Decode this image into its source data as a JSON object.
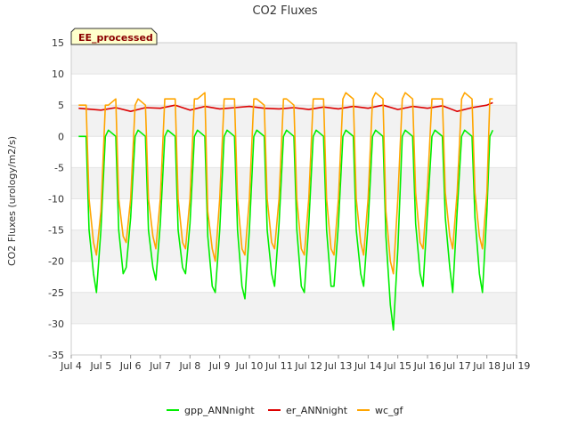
{
  "chart_data": {
    "type": "line",
    "title": "CO2 Fluxes",
    "xlabel": "",
    "ylabel": "CO2 Fluxes (urology/m2/s)",
    "badge": "EE_processed",
    "xlim": [
      4,
      19
    ],
    "ylim": [
      -35,
      15
    ],
    "x_ticks": [
      {
        "value": 4,
        "label": "Jul 4"
      },
      {
        "value": 5,
        "label": "Jul 5"
      },
      {
        "value": 6,
        "label": "Jul 6"
      },
      {
        "value": 7,
        "label": "Jul 7"
      },
      {
        "value": 8,
        "label": "Jul 8"
      },
      {
        "value": 9,
        "label": "Jul 9"
      },
      {
        "value": 10,
        "label": "Jul 10"
      },
      {
        "value": 11,
        "label": "Jul 11"
      },
      {
        "value": 12,
        "label": "Jul 12"
      },
      {
        "value": 13,
        "label": "Jul 13"
      },
      {
        "value": 14,
        "label": "Jul 14"
      },
      {
        "value": 15,
        "label": "Jul 15"
      },
      {
        "value": 16,
        "label": "Jul 16"
      },
      {
        "value": 17,
        "label": "Jul 17"
      },
      {
        "value": 18,
        "label": "Jul 18"
      },
      {
        "value": 19,
        "label": "Jul 19"
      }
    ],
    "y_ticks": [
      15,
      10,
      5,
      0,
      -5,
      -10,
      -15,
      -20,
      -25,
      -30,
      -35
    ],
    "y_tick_labels": [
      "15",
      "10",
      "5",
      "0",
      "-5",
      "-10",
      "-15",
      "-20",
      "-25",
      "-30",
      "-35"
    ],
    "legend_position": "bottom-center",
    "series": [
      {
        "name": "gpp_ANNnight",
        "color": "#00ee00",
        "x": [
          4.25,
          4.5,
          4.6,
          4.75,
          4.85,
          5.0,
          5.15,
          5.25,
          5.5,
          5.6,
          5.75,
          5.85,
          6.0,
          6.15,
          6.25,
          6.5,
          6.6,
          6.75,
          6.85,
          7.0,
          7.15,
          7.25,
          7.5,
          7.6,
          7.75,
          7.85,
          8.0,
          8.15,
          8.25,
          8.5,
          8.6,
          8.75,
          8.85,
          9.0,
          9.15,
          9.25,
          9.5,
          9.6,
          9.75,
          9.85,
          10.0,
          10.15,
          10.25,
          10.5,
          10.6,
          10.75,
          10.85,
          11.0,
          11.15,
          11.25,
          11.5,
          11.6,
          11.75,
          11.85,
          12.0,
          12.15,
          12.25,
          12.5,
          12.6,
          12.75,
          12.85,
          13.0,
          13.15,
          13.25,
          13.5,
          13.6,
          13.75,
          13.85,
          14.0,
          14.15,
          14.25,
          14.5,
          14.6,
          14.75,
          14.85,
          15.0,
          15.15,
          15.25,
          15.5,
          15.6,
          15.75,
          15.85,
          16.0,
          16.15,
          16.25,
          16.5,
          16.6,
          16.75,
          16.85,
          17.0,
          17.15,
          17.25,
          17.5,
          17.6,
          17.75,
          17.85,
          18.0,
          18.1,
          18.2
        ],
        "y": [
          0,
          0,
          -15,
          -22,
          -25,
          -15,
          0,
          1,
          0,
          -15,
          -22,
          -21,
          -13,
          0,
          1,
          0,
          -15,
          -21,
          -23,
          -14,
          0,
          1,
          0,
          -15,
          -21,
          -22,
          -14,
          0,
          1,
          0,
          -16,
          -24,
          -25,
          -15,
          0,
          1,
          0,
          -15,
          -24,
          -26,
          -15,
          0,
          1,
          0,
          -15,
          -22,
          -24,
          -14,
          0,
          1,
          0,
          -15,
          -24,
          -25,
          -14,
          0,
          1,
          0,
          -15,
          -24,
          -24,
          -14,
          0,
          1,
          0,
          -15,
          -22,
          -24,
          -14,
          0,
          1,
          0,
          -16,
          -27,
          -31,
          -18,
          0,
          1,
          0,
          -14,
          -22,
          -24,
          -12,
          0,
          1,
          0,
          -13,
          -21,
          -25,
          -12,
          0,
          1,
          0,
          -13,
          -22,
          -25,
          -12,
          0,
          1
        ]
      },
      {
        "name": "er_ANNnight",
        "color": "#dd0000",
        "x": [
          4.25,
          5.0,
          5.5,
          6.0,
          6.5,
          7.0,
          7.5,
          8.0,
          8.5,
          9.0,
          9.5,
          10.0,
          10.5,
          11.0,
          11.5,
          12.0,
          12.5,
          13.0,
          13.5,
          14.0,
          14.5,
          15.0,
          15.5,
          16.0,
          16.5,
          17.0,
          17.5,
          18.0,
          18.2
        ],
        "y": [
          4.5,
          4.2,
          4.6,
          4.0,
          4.6,
          4.5,
          5.0,
          4.2,
          4.8,
          4.4,
          4.6,
          4.8,
          4.5,
          4.4,
          4.6,
          4.3,
          4.7,
          4.4,
          4.8,
          4.5,
          5.0,
          4.3,
          4.8,
          4.5,
          4.9,
          4.0,
          4.6,
          5.0,
          5.4
        ]
      },
      {
        "name": "wc_gf",
        "color": "#ffa500",
        "x": [
          4.25,
          4.5,
          4.6,
          4.75,
          4.85,
          5.0,
          5.15,
          5.25,
          5.5,
          5.6,
          5.75,
          5.85,
          6.0,
          6.15,
          6.25,
          6.5,
          6.6,
          6.75,
          6.85,
          7.0,
          7.15,
          7.25,
          7.5,
          7.6,
          7.75,
          7.85,
          8.0,
          8.15,
          8.25,
          8.5,
          8.6,
          8.75,
          8.85,
          9.0,
          9.15,
          9.25,
          9.5,
          9.6,
          9.75,
          9.85,
          10.0,
          10.15,
          10.25,
          10.5,
          10.6,
          10.75,
          10.85,
          11.0,
          11.15,
          11.25,
          11.5,
          11.6,
          11.75,
          11.85,
          12.0,
          12.15,
          12.25,
          12.5,
          12.6,
          12.75,
          12.85,
          13.0,
          13.15,
          13.25,
          13.5,
          13.6,
          13.75,
          13.85,
          14.0,
          14.15,
          14.25,
          14.5,
          14.6,
          14.75,
          14.85,
          15.0,
          15.15,
          15.25,
          15.5,
          15.6,
          15.75,
          15.85,
          16.0,
          16.15,
          16.25,
          16.5,
          16.6,
          16.75,
          16.85,
          17.0,
          17.15,
          17.25,
          17.5,
          17.6,
          17.75,
          17.85,
          18.0,
          18.1,
          18.2
        ],
        "y": [
          5,
          5,
          -10,
          -17,
          -19,
          -12,
          5,
          5,
          6,
          -10,
          -16,
          -17,
          -10,
          5,
          6,
          5,
          -10,
          -16,
          -18,
          -10,
          6,
          6,
          6,
          -10,
          -17,
          -18,
          -10,
          6,
          6,
          7,
          -12,
          -18,
          -20,
          -10,
          6,
          6,
          6,
          -10,
          -18,
          -19,
          -10,
          6,
          6,
          5,
          -10,
          -17,
          -18,
          -10,
          6,
          6,
          5,
          -10,
          -18,
          -19,
          -10,
          6,
          6,
          6,
          -10,
          -18,
          -19,
          -10,
          6,
          7,
          6,
          -10,
          -17,
          -19,
          -10,
          6,
          7,
          6,
          -12,
          -20,
          -22,
          -10,
          6,
          7,
          6,
          -9,
          -17,
          -18,
          -8,
          6,
          6,
          6,
          -9,
          -16,
          -18,
          -9,
          6,
          7,
          6,
          -9,
          -16,
          -18,
          -9,
          6,
          6
        ]
      }
    ]
  }
}
